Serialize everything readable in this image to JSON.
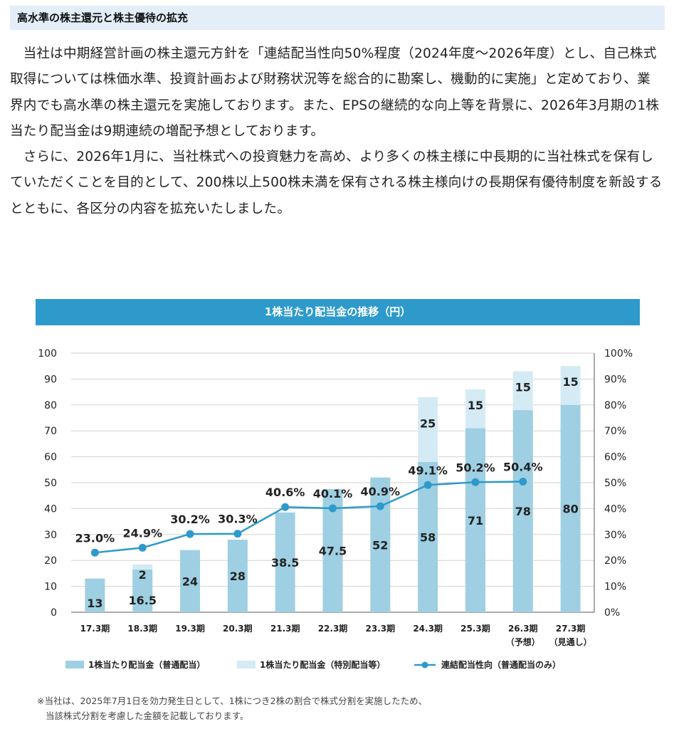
{
  "header": {
    "title": "高水準の株主還元と株主優待の拡充"
  },
  "paragraphs": [
    "当社は中期経営計画の株主還元方針を「連結配当性向50%程度（2024年度～2026年度）とし、自己株式取得については株価水準、投資計画および財務状況等を総合的に勘案し、機動的に実施」と定めており、業界内でも高水準の株主還元を実施しております。また、EPSの継続的な向上等を背景に、2026年3月期の1株当たり配当金は9期連続の増配予想としております。",
    "さらに、2026年1月に、当社株式への投資魅力を高め、より多くの株主様に中長期的に当社株式を保有していただくことを目的として、200株以上500株未満を保有される株主様向けの長期保有優待制度を新設するとともに、各区分の内容を拡充いたしました。"
  ],
  "colors": {
    "ordinary": "#9ecfe3",
    "special": "#d4ebf5",
    "payout": "#2e9acb",
    "banner": "#2e9acb",
    "heading_bg": "#e3eef8"
  },
  "chart_data": {
    "type": "bar",
    "title": "1株当たり配当金の推移（円）",
    "categories": [
      "17.3期",
      "18.3期",
      "19.3期",
      "20.3期",
      "21.3期",
      "22.3期",
      "23.3期",
      "24.3期",
      "25.3期",
      "26.3期",
      "27.3期"
    ],
    "category_notes": [
      "",
      "",
      "",
      "",
      "",
      "",
      "",
      "",
      "",
      "（予想）",
      "（見通し）"
    ],
    "series": [
      {
        "name": "1株当たり配当金（普通配当）",
        "kind": "bar",
        "values": [
          13,
          16.5,
          24,
          28,
          38.5,
          47.5,
          52,
          58,
          71,
          78,
          80
        ],
        "labels": [
          "13",
          "16.5",
          "24",
          "28",
          "38.5",
          "47.5",
          "52",
          "58",
          "71",
          "78",
          "80"
        ]
      },
      {
        "name": "1株当たり配当金（特別配当等）",
        "kind": "bar",
        "stacked": true,
        "values": [
          0,
          2,
          0,
          0,
          0,
          0,
          0,
          25,
          15,
          15,
          15
        ],
        "labels": [
          "",
          "2",
          "",
          "",
          "",
          "",
          "",
          "25",
          "15",
          "15",
          "15"
        ]
      },
      {
        "name": "連結配当性向（普通配当のみ）",
        "kind": "line",
        "axis": "right",
        "values": [
          23.0,
          24.9,
          30.2,
          30.3,
          40.6,
          40.1,
          40.9,
          49.1,
          50.2,
          50.4,
          null
        ],
        "labels": [
          "23.0%",
          "24.9%",
          "30.2%",
          "30.3%",
          "40.6%",
          "40.1%",
          "40.9%",
          "49.1%",
          "50.2%",
          "50.4%",
          ""
        ]
      }
    ],
    "ylim": [
      0,
      100
    ],
    "y_ticks": [
      "0",
      "10",
      "20",
      "30",
      "40",
      "50",
      "60",
      "70",
      "80",
      "90",
      "100"
    ],
    "y2lim": [
      0,
      100
    ],
    "y2_ticks": [
      "0%",
      "10%",
      "20%",
      "30%",
      "40%",
      "50%",
      "60%",
      "70%",
      "80%",
      "90%",
      "100%"
    ],
    "grid": true,
    "legend_position": "bottom"
  },
  "footnote": [
    "※当社は、2025年7月1日を効力発生日として、1株につき2株の割合で株式分割を実施したため、",
    "当該株式分割を考慮した金額を記載しております。"
  ]
}
